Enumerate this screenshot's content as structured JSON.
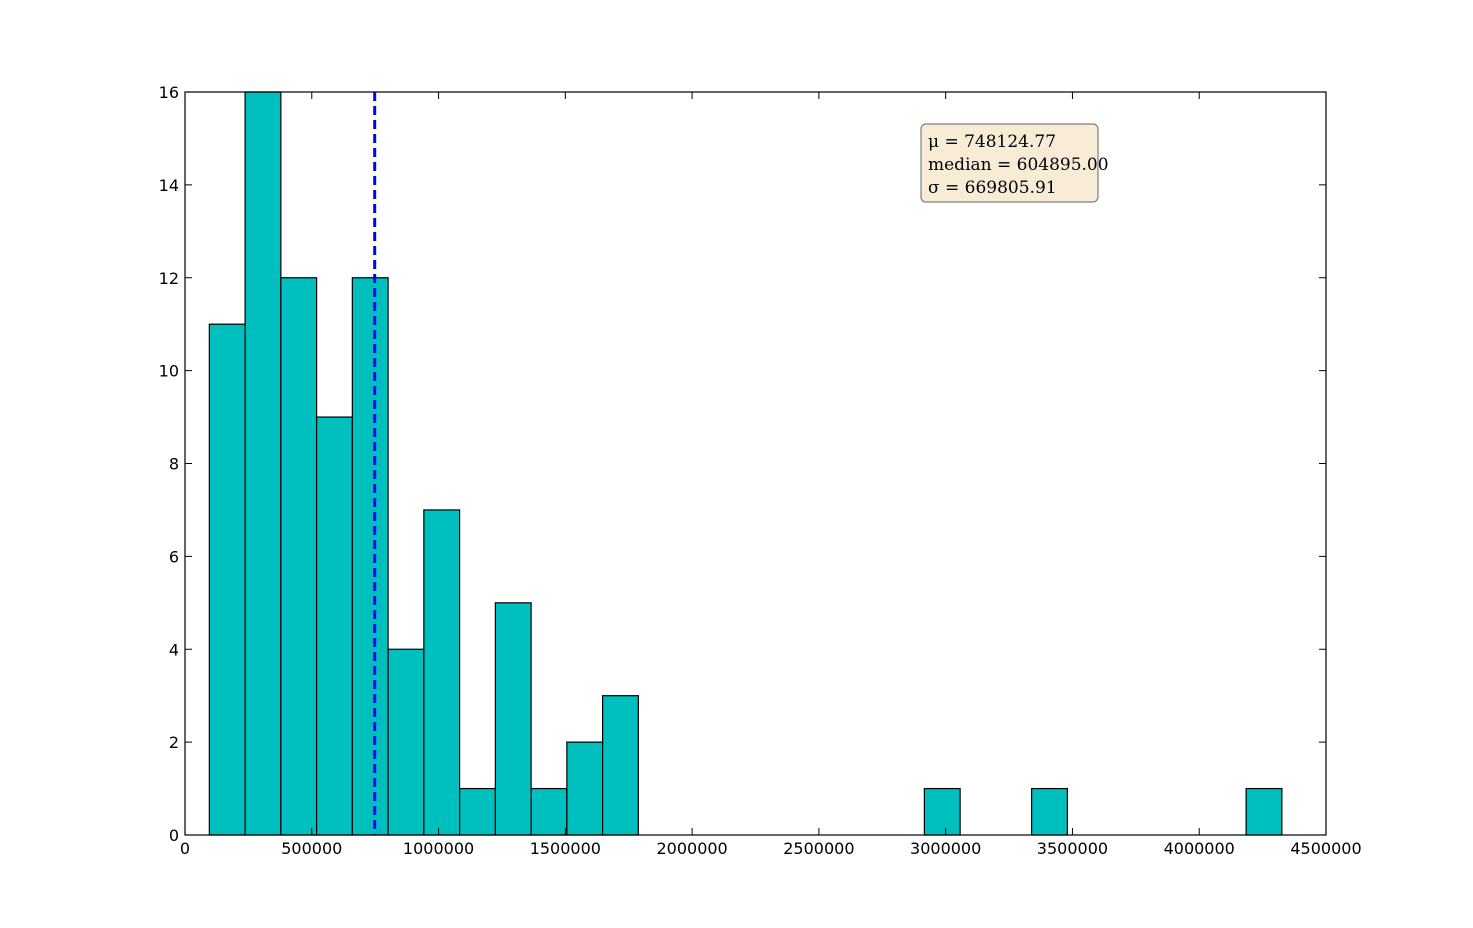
{
  "chart_data": {
    "type": "bar",
    "subtype": "histogram",
    "bin_edges": [
      96000,
      237000,
      378000,
      519000,
      660000,
      801000,
      942000,
      1083000,
      1224000,
      1365000,
      1506000,
      1647000,
      1788000,
      1929000,
      2070000,
      2211000,
      2352000,
      2493000,
      2634000,
      2775000,
      2916000,
      3057000,
      3198000,
      3339000,
      3480000,
      3621000,
      3762000,
      3903000,
      4044000,
      4185000,
      4326000
    ],
    "counts": [
      11,
      16,
      12,
      9,
      12,
      4,
      7,
      1,
      5,
      1,
      2,
      3,
      0,
      0,
      0,
      0,
      0,
      0,
      0,
      0,
      1,
      0,
      0,
      1,
      0,
      0,
      0,
      0,
      0,
      1
    ],
    "xlim": [
      0,
      4500000
    ],
    "ylim": [
      0,
      16
    ],
    "xticks": [
      0,
      500000,
      1000000,
      1500000,
      2000000,
      2500000,
      3000000,
      3500000,
      4000000,
      4500000
    ],
    "yticks": [
      0,
      2,
      4,
      6,
      8,
      10,
      12,
      14,
      16
    ],
    "xtick_labels": [
      "0",
      "500000",
      "1000000",
      "1500000",
      "2000000",
      "2500000",
      "3000000",
      "3500000",
      "4000000",
      "4500000"
    ],
    "ytick_labels": [
      "0",
      "2",
      "4",
      "6",
      "8",
      "10",
      "12",
      "14",
      "16"
    ],
    "mean_line": {
      "value": 748124.77,
      "style": "dashed"
    },
    "stats": {
      "mu": "μ = 748124.77",
      "median": "median = 604895.00",
      "sigma": "σ = 669805.91"
    },
    "title": "",
    "xlabel": "",
    "ylabel": "",
    "grid": false,
    "colors": {
      "bar_fill": "#00bfbf",
      "bar_edge": "#000000",
      "mean_line": "#0000ff",
      "stats_box_fill": "#f9ecd6",
      "stats_box_edge": "#7f7f7f"
    }
  }
}
